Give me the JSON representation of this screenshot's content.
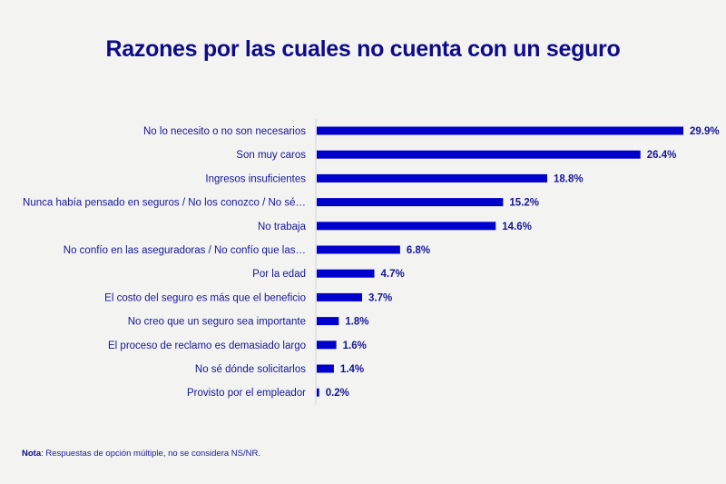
{
  "chart_data": {
    "type": "bar",
    "orientation": "horizontal",
    "title": "Razones por las cuales no cuenta con un seguro",
    "xlabel": "",
    "ylabel": "",
    "value_format": "percent",
    "grid": false,
    "bar_color": "#0000cc",
    "categories": [
      "No lo necesito o no son necesarios",
      "Son muy caros",
      "Ingresos insuficientes",
      "Nunca había pensado en seguros / No los conozco / No sé…",
      "No trabaja",
      "No confío en las aseguradoras / No confío que las…",
      "Por la edad",
      "El costo del seguro es más que el beneficio",
      "No creo que un seguro sea importante",
      "El proceso de reclamo es demasiado largo",
      "No sé dónde solicitarlos",
      "Provisto por el empleador"
    ],
    "values": [
      29.9,
      26.4,
      18.8,
      15.2,
      14.6,
      6.8,
      4.7,
      3.7,
      1.8,
      1.6,
      1.4,
      0.2
    ],
    "data_labels": [
      "29.9%",
      "26.4%",
      "18.8%",
      "15.2%",
      "14.6%",
      "6.8%",
      "4.7%",
      "3.7%",
      "1.8%",
      "1.6%",
      "1.4%",
      "0.2%"
    ],
    "xlim": [
      0,
      30
    ]
  },
  "footer": {
    "note_label": "Nota",
    "note_text": ": Respuestas de opción múltiple, no se considera NS/NR."
  }
}
